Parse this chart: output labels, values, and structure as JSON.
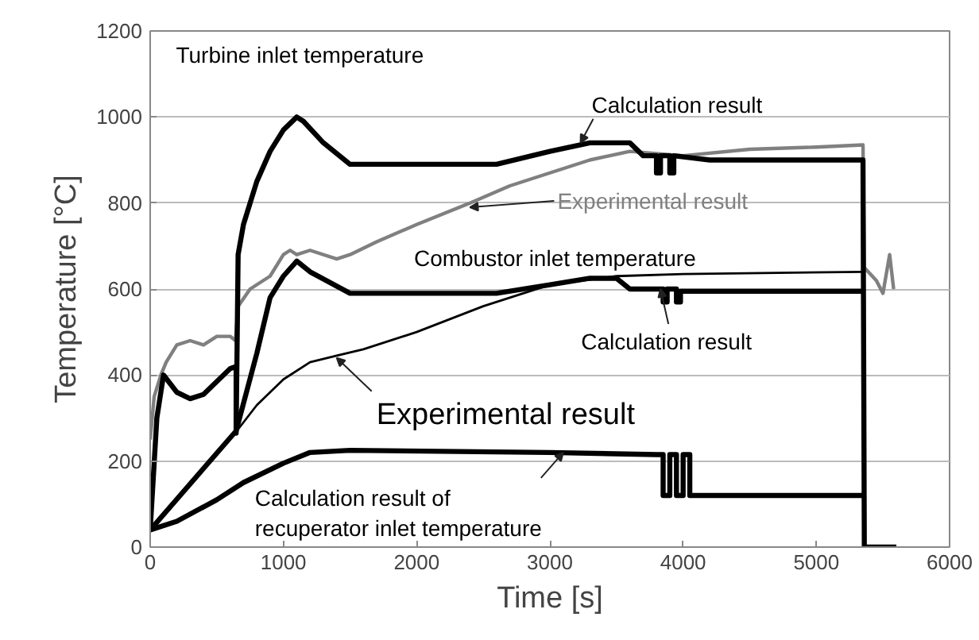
{
  "chart_data": {
    "type": "line",
    "xlabel": "Time [s]",
    "ylabel": "Temperature [°C]",
    "xlim": [
      0,
      6000
    ],
    "xticks": [
      0,
      1000,
      2000,
      3000,
      4000,
      5000,
      6000
    ],
    "ylim": [
      0,
      1200
    ],
    "yticks": [
      0,
      200,
      400,
      600,
      800,
      1000,
      1200
    ],
    "grid": "y",
    "marker": "none",
    "line_style": "solid",
    "series": [
      {
        "color": "#808080",
        "x": [
          0,
          30,
          80,
          120,
          200,
          300,
          400,
          500,
          600,
          640,
          660,
          750,
          900,
          1000,
          1050,
          1100,
          1200,
          1400,
          1500,
          1700,
          2000,
          2400,
          2700,
          3000,
          3300,
          3600,
          4000,
          4500,
          5000,
          5350,
          5360,
          5450,
          5500,
          5550,
          5580
        ],
        "values": [
          250,
          350,
          400,
          430,
          470,
          480,
          470,
          490,
          490,
          480,
          560,
          600,
          630,
          680,
          690,
          680,
          690,
          670,
          680,
          710,
          750,
          800,
          840,
          870,
          900,
          920,
          910,
          925,
          930,
          935,
          650,
          620,
          590,
          680,
          600
        ]
      },
      {
        "color": "#000000",
        "x": [
          0,
          650,
          800,
          1000,
          1200,
          1400,
          1600,
          2000,
          2500,
          3000,
          3500,
          4000,
          5350
        ],
        "values": [
          40,
          270,
          330,
          390,
          430,
          445,
          460,
          500,
          560,
          610,
          630,
          635,
          640
        ]
      },
      {
        "color": "#000000",
        "x": [
          0,
          50,
          100,
          200,
          300,
          400,
          500,
          600,
          645,
          645,
          660,
          700,
          800,
          900,
          1000,
          1100,
          1150,
          1300,
          1500,
          2600,
          3000,
          3300,
          3600,
          3700,
          3800,
          3800,
          3830,
          3830,
          3900,
          3900,
          3930,
          3930,
          4200,
          5350,
          5360,
          5600
        ],
        "values": [
          40,
          300,
          400,
          360,
          345,
          355,
          385,
          415,
          420,
          265,
          680,
          750,
          850,
          920,
          970,
          1000,
          990,
          940,
          890,
          890,
          920,
          940,
          940,
          910,
          910,
          870,
          870,
          910,
          910,
          870,
          870,
          910,
          900,
          900,
          0,
          0
        ]
      },
      {
        "color": "#000000",
        "x": [
          0,
          645,
          800,
          900,
          1000,
          1100,
          1200,
          1500,
          2600,
          3000,
          3300,
          3500,
          3600,
          3850,
          3850,
          3880,
          3880,
          3950,
          3950,
          3980,
          3980,
          5350
        ],
        "values": [
          40,
          270,
          450,
          580,
          630,
          665,
          640,
          590,
          590,
          610,
          625,
          625,
          600,
          600,
          570,
          570,
          600,
          600,
          570,
          570,
          595,
          595
        ]
      },
      {
        "color": "#000000",
        "x": [
          0,
          200,
          500,
          700,
          1000,
          1200,
          1500,
          3000,
          3800,
          3850,
          3850,
          3900,
          3900,
          3950,
          3950,
          4000,
          4000,
          4050,
          4050,
          4100,
          4100,
          5350
        ],
        "values": [
          40,
          60,
          110,
          150,
          195,
          220,
          225,
          220,
          215,
          215,
          120,
          120,
          215,
          215,
          120,
          120,
          215,
          215,
          120,
          120,
          120,
          120
        ]
      }
    ],
    "annotations": [
      {
        "text": "Turbine inlet temperature",
        "x": 1100,
        "y": 1000
      },
      {
        "text": "Calculation result",
        "x": 3230,
        "y": 940
      },
      {
        "text": "Experimental result",
        "x": 2400,
        "y": 790
      },
      {
        "text": "Combustor inlet temperature",
        "x": 2600,
        "y": 590
      },
      {
        "text": "Calculation result",
        "x": 3830,
        "y": 600
      },
      {
        "text": "Experimental result",
        "x": 1400,
        "y": 440
      },
      {
        "text": "Calculation result of\nrecuperator inlet temperature",
        "x": 3100,
        "y": 220
      }
    ]
  }
}
